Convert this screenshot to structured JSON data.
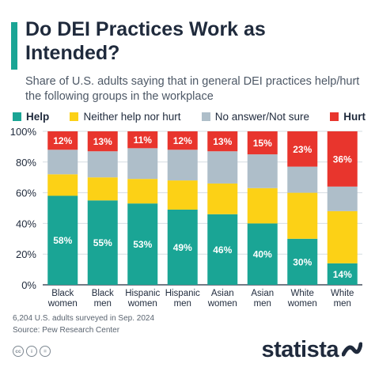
{
  "header": {
    "title": "Do DEI Practices Work as Intended?",
    "subtitle": "Share of U.S. adults saying that in general DEI practices help/hurt the following groups in the workplace"
  },
  "footer": {
    "note": "6,204 U.S. adults surveyed in Sep. 2024",
    "source": "Source: Pew Research Center",
    "brand": "statista"
  },
  "colors": {
    "help": "#1aa595",
    "neither": "#fcd116",
    "no_answer": "#aebec9",
    "hurt": "#e8352d",
    "text_dark": "#1f2a3c"
  },
  "chart_data": {
    "type": "bar",
    "stacked": true,
    "categories": [
      "Black women",
      "Black men",
      "Hispanic women",
      "Hispanic men",
      "Asian women",
      "Asian men",
      "White women",
      "White men"
    ],
    "category_lines": [
      [
        "Black",
        "women"
      ],
      [
        "Black",
        "men"
      ],
      [
        "Hispanic",
        "women"
      ],
      [
        "Hispanic",
        "men"
      ],
      [
        "Asian",
        "women"
      ],
      [
        "Asian",
        "men"
      ],
      [
        "White",
        "women"
      ],
      [
        "White",
        "men"
      ]
    ],
    "series": [
      {
        "name": "Help",
        "color": "#1aa595",
        "values": [
          58,
          55,
          53,
          49,
          46,
          40,
          30,
          14
        ]
      },
      {
        "name": "Neither help nor hurt",
        "color": "#fcd116",
        "values": [
          14,
          15,
          16,
          19,
          20,
          23,
          30,
          34
        ]
      },
      {
        "name": "No answer/Not sure",
        "color": "#aebec9",
        "values": [
          16,
          17,
          20,
          20,
          21,
          22,
          17,
          16
        ]
      },
      {
        "name": "Hurt",
        "color": "#e8352d",
        "values": [
          12,
          13,
          11,
          12,
          13,
          15,
          23,
          36
        ]
      }
    ],
    "data_labels": {
      "Help": [
        "58%",
        "55%",
        "53%",
        "49%",
        "46%",
        "40%",
        "30%",
        "14%"
      ],
      "Hurt": [
        "12%",
        "13%",
        "11%",
        "12%",
        "13%",
        "15%",
        "23%",
        "36%"
      ]
    },
    "ylim": [
      0,
      100
    ],
    "yticks": [
      0,
      20,
      40,
      60,
      80,
      100
    ],
    "ytick_labels": [
      "0%",
      "20%",
      "40%",
      "60%",
      "80%",
      "100%"
    ],
    "xlabel": "",
    "ylabel": "",
    "legend_position": "top",
    "grid": true
  }
}
